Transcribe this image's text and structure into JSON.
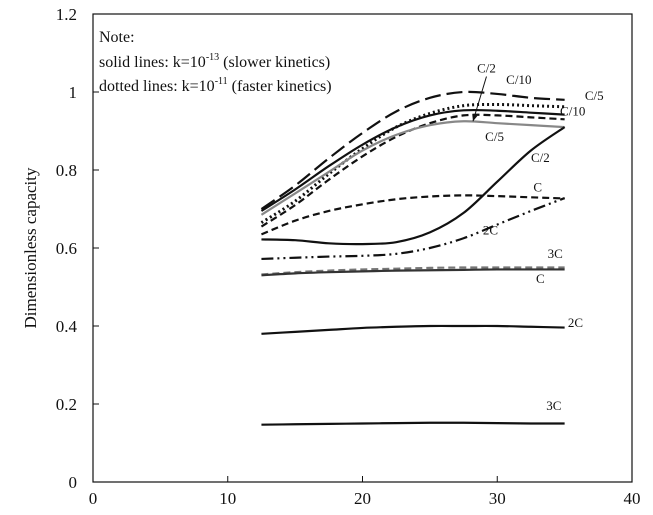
{
  "chart_data": {
    "type": "line",
    "xlabel": "",
    "ylabel": "Dimensionless capacity",
    "xlim": [
      0,
      40
    ],
    "ylim": [
      0,
      1.2
    ],
    "x_ticks": [
      0,
      10,
      20,
      30,
      40
    ],
    "y_ticks": [
      0,
      0.2,
      0.4,
      0.6,
      0.8,
      1,
      1.2
    ],
    "x_tick_labels": [
      "0",
      "10",
      "20",
      "30",
      "40"
    ],
    "y_tick_labels": [
      "0",
      "0.2",
      "0.4",
      "0.6",
      "0.8",
      "1",
      "1.2"
    ],
    "grid": false,
    "note": {
      "title": "Note:",
      "lines": [
        {
          "prefix": "solid  lines: k=10",
          "sup": "-13",
          "suffix": " (slower kinetics)"
        },
        {
          "prefix": "dotted  lines: k=10",
          "sup": "-11",
          "suffix": " (faster kinetics)"
        }
      ]
    },
    "series": [
      {
        "label": "C/10",
        "kinetics": "faster",
        "dash": "long-dash",
        "color": "#111111",
        "x": [
          12.5,
          15,
          17.5,
          20,
          22.5,
          25,
          27.5,
          30,
          32.5,
          35
        ],
        "y": [
          0.7,
          0.76,
          0.83,
          0.895,
          0.95,
          0.985,
          1.0,
          0.995,
          0.985,
          0.98
        ]
      },
      {
        "label": "C/5",
        "kinetics": "faster",
        "dash": "dotted",
        "color": "#111111",
        "x": [
          12.5,
          15,
          17.5,
          20,
          22.5,
          25,
          27.5,
          30,
          32.5,
          35
        ],
        "y": [
          0.665,
          0.72,
          0.79,
          0.855,
          0.91,
          0.945,
          0.965,
          0.968,
          0.965,
          0.962
        ]
      },
      {
        "label": "C/10",
        "kinetics": "slower",
        "dash": "solid",
        "color": "#111111",
        "x": [
          12.5,
          15,
          17.5,
          20,
          22.5,
          25,
          27.5,
          30,
          32.5,
          35
        ],
        "y": [
          0.695,
          0.75,
          0.81,
          0.865,
          0.91,
          0.94,
          0.953,
          0.952,
          0.947,
          0.942
        ]
      },
      {
        "label": "C/2",
        "kinetics": "faster",
        "dash": "dashed",
        "color": "#111111",
        "x": [
          12.5,
          15,
          17.5,
          20,
          22.5,
          25,
          27.5,
          30,
          32.5,
          35
        ],
        "y": [
          0.655,
          0.71,
          0.775,
          0.835,
          0.885,
          0.92,
          0.94,
          0.94,
          0.935,
          0.93
        ]
      },
      {
        "label": "C/5",
        "kinetics": "slower",
        "dash": "solid",
        "color": "#888888",
        "x": [
          12.5,
          15,
          17.5,
          20,
          22.5,
          25,
          27.5,
          30,
          32.5,
          35
        ],
        "y": [
          0.685,
          0.74,
          0.795,
          0.85,
          0.89,
          0.915,
          0.925,
          0.92,
          0.915,
          0.91
        ]
      },
      {
        "label": "C/2",
        "kinetics": "slower",
        "dash": "solid",
        "color": "#111111",
        "x": [
          12.5,
          15,
          17.5,
          20,
          22.5,
          25,
          27.5,
          30,
          32.5,
          35
        ],
        "y": [
          0.622,
          0.62,
          0.612,
          0.61,
          0.615,
          0.64,
          0.69,
          0.77,
          0.85,
          0.91
        ]
      },
      {
        "label": "C",
        "kinetics": "faster",
        "dash": "dashed",
        "color": "#111111",
        "x": [
          12.5,
          15,
          17.5,
          20,
          22.5,
          25,
          27.5,
          30,
          32.5,
          35
        ],
        "y": [
          0.635,
          0.67,
          0.695,
          0.712,
          0.725,
          0.732,
          0.735,
          0.733,
          0.73,
          0.727
        ]
      },
      {
        "label": "2C",
        "kinetics": "faster",
        "dash": "dash-dot-dot",
        "color": "#111111",
        "x": [
          12.5,
          15,
          17.5,
          20,
          22.5,
          25,
          27.5,
          30,
          32.5,
          35
        ],
        "y": [
          0.572,
          0.575,
          0.578,
          0.58,
          0.585,
          0.6,
          0.625,
          0.66,
          0.695,
          0.728
        ]
      },
      {
        "label": "3C",
        "kinetics": "faster",
        "dash": "dashed",
        "color": "#777777",
        "x": [
          12.5,
          15,
          17.5,
          20,
          22.5,
          25,
          27.5,
          30,
          32.5,
          35
        ],
        "y": [
          0.532,
          0.538,
          0.542,
          0.545,
          0.547,
          0.549,
          0.55,
          0.55,
          0.55,
          0.55
        ]
      },
      {
        "label": "C",
        "kinetics": "slower",
        "dash": "solid",
        "color": "#333333",
        "x": [
          12.5,
          15,
          17.5,
          20,
          22.5,
          25,
          27.5,
          30,
          32.5,
          35
        ],
        "y": [
          0.53,
          0.535,
          0.538,
          0.54,
          0.542,
          0.543,
          0.544,
          0.545,
          0.545,
          0.545
        ]
      },
      {
        "label": "2C",
        "kinetics": "slower",
        "dash": "solid",
        "color": "#111111",
        "x": [
          12.5,
          15,
          17.5,
          20,
          22.5,
          25,
          27.5,
          30,
          32.5,
          35
        ],
        "y": [
          0.38,
          0.385,
          0.39,
          0.395,
          0.398,
          0.4,
          0.4,
          0.4,
          0.398,
          0.396
        ]
      },
      {
        "label": "3C",
        "kinetics": "slower",
        "dash": "solid",
        "color": "#111111",
        "x": [
          12.5,
          15,
          17.5,
          20,
          22.5,
          25,
          27.5,
          30,
          32.5,
          35
        ],
        "y": [
          0.147,
          0.148,
          0.149,
          0.15,
          0.151,
          0.152,
          0.152,
          0.151,
          0.15,
          0.15
        ]
      }
    ],
    "annotations": [
      {
        "text": "C/2",
        "x": 29.2,
        "y": 1.05,
        "arrow_to": [
          28.2,
          0.925
        ]
      },
      {
        "text": "C/10",
        "x": 31.6,
        "y": 1.02
      },
      {
        "text": "C/5",
        "x": 37.2,
        "y": 0.98
      },
      {
        "text": "C/10",
        "x": 35.6,
        "y": 0.94
      },
      {
        "text": "C/5",
        "x": 29.8,
        "y": 0.875
      },
      {
        "text": "C/2",
        "x": 33.2,
        "y": 0.82
      },
      {
        "text": "C",
        "x": 33.0,
        "y": 0.745
      },
      {
        "text": "2C",
        "x": 29.5,
        "y": 0.635
      },
      {
        "text": "3C",
        "x": 34.3,
        "y": 0.575
      },
      {
        "text": "C",
        "x": 33.2,
        "y": 0.51
      },
      {
        "text": "2C",
        "x": 35.8,
        "y": 0.397
      },
      {
        "text": "3C",
        "x": 34.2,
        "y": 0.185
      }
    ]
  }
}
